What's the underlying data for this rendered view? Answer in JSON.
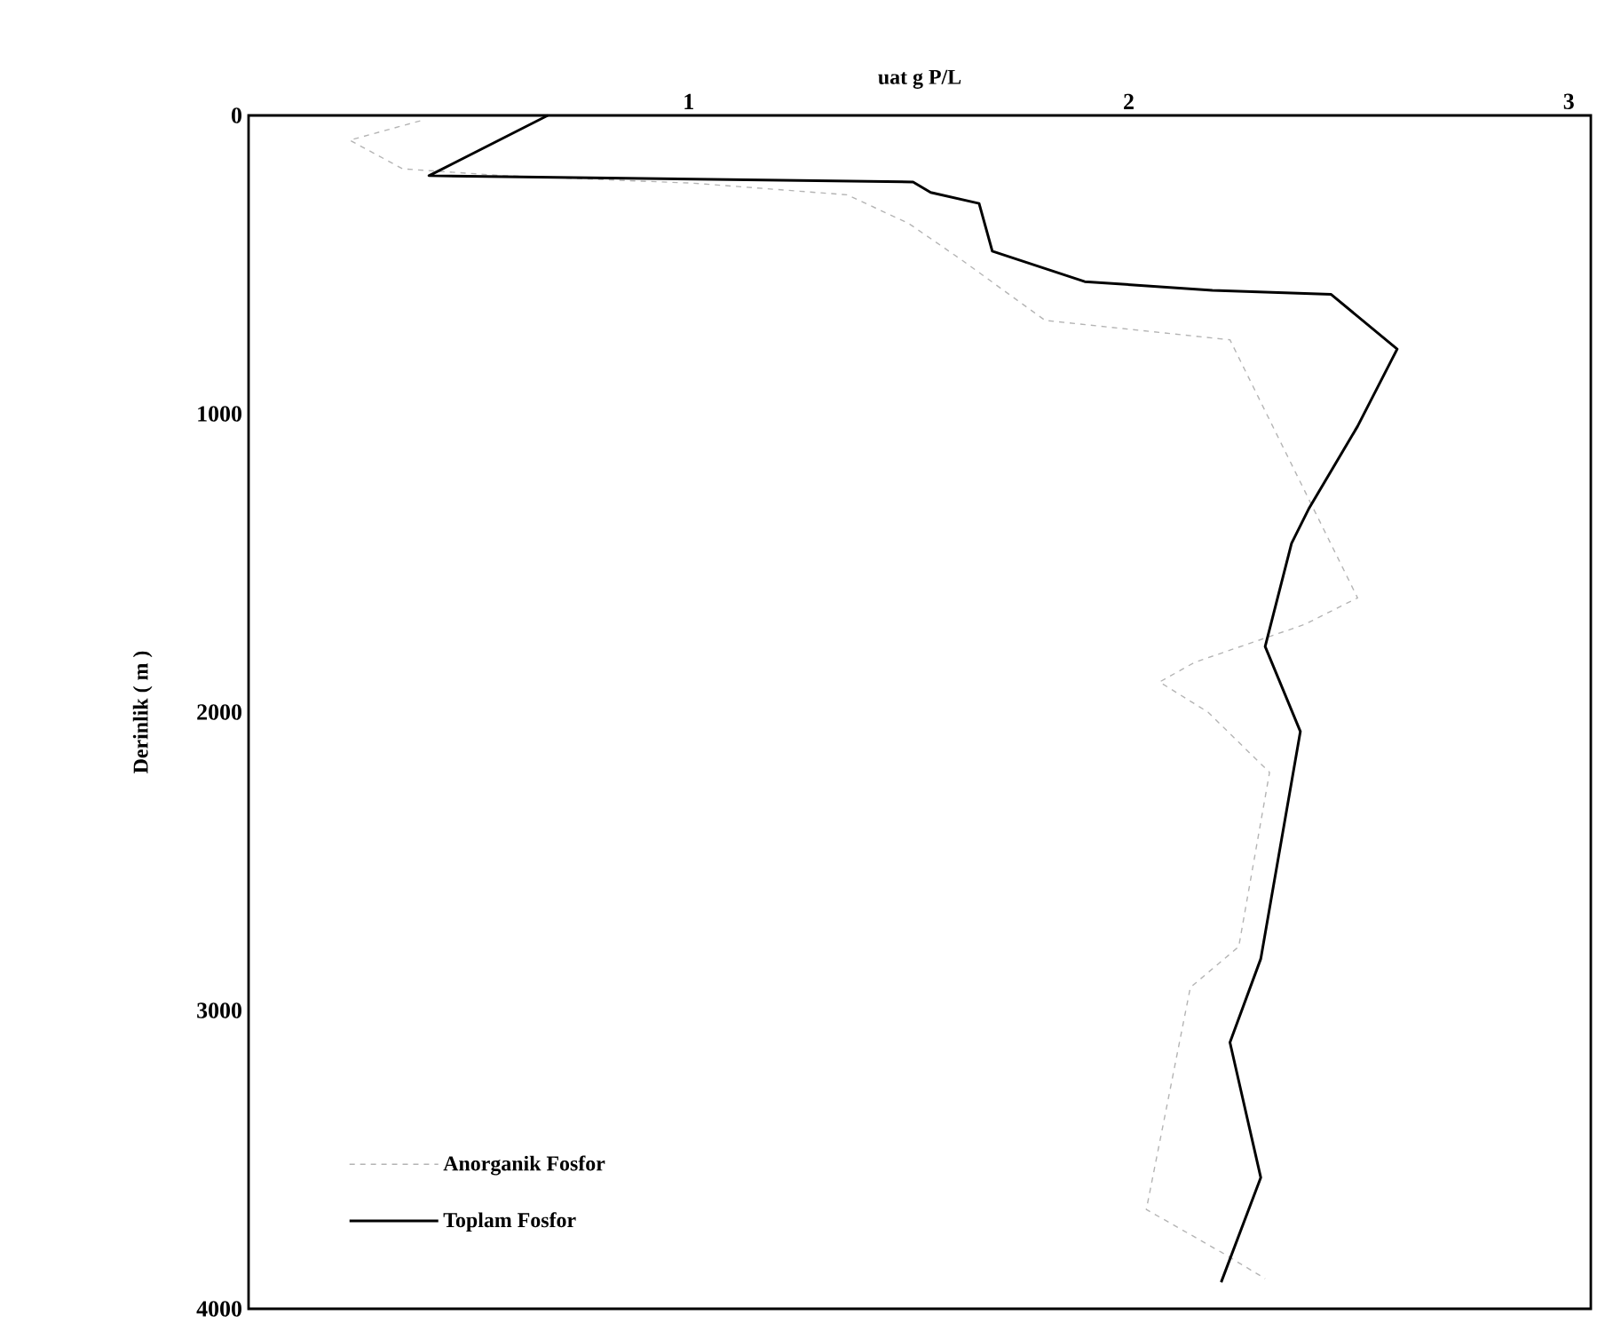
{
  "chart_data": {
    "type": "line",
    "xlabel": "uat g P/L",
    "ylabel": "Derinlik ( m )",
    "xlim": [
      0,
      3.05
    ],
    "ylim": [
      4000,
      0
    ],
    "xticks": [
      1,
      2,
      3
    ],
    "yticks": [
      0,
      1000,
      2000,
      3000,
      4000
    ],
    "legend": "bottom left",
    "grid": false,
    "marker": "none",
    "series": [
      {
        "name": "Anorganik Fosfor",
        "color": "#b4b4b4",
        "line_style": "dashed",
        "x": [
          0.39,
          0.23,
          0.35,
          0.58,
          1.01,
          1.36,
          1.5,
          1.62,
          1.81,
          2.23,
          2.52,
          2.4,
          2.15,
          2.07,
          2.18,
          2.32,
          2.25,
          2.14,
          2.04,
          2.21,
          2.31
        ],
        "values": [
          18,
          83,
          179,
          202,
          227,
          266,
          362,
          484,
          687,
          752,
          1617,
          1706,
          1833,
          1899,
          2000,
          2202,
          2786,
          2923,
          3667,
          3810,
          3899
        ]
      },
      {
        "name": "Toplam Fosfor",
        "color": "#000000",
        "line_style": "solid",
        "x": [
          0.68,
          0.41,
          1.51,
          1.55,
          1.66,
          1.69,
          1.9,
          2.19,
          2.46,
          2.61,
          2.52,
          2.41,
          2.37,
          2.31,
          2.39,
          2.3,
          2.23,
          2.3,
          2.21
        ],
        "values": [
          0,
          202,
          223,
          258,
          295,
          455,
          557,
          586,
          600,
          783,
          1042,
          1316,
          1434,
          1780,
          2065,
          2827,
          3107,
          3560,
          3911
        ]
      }
    ]
  }
}
